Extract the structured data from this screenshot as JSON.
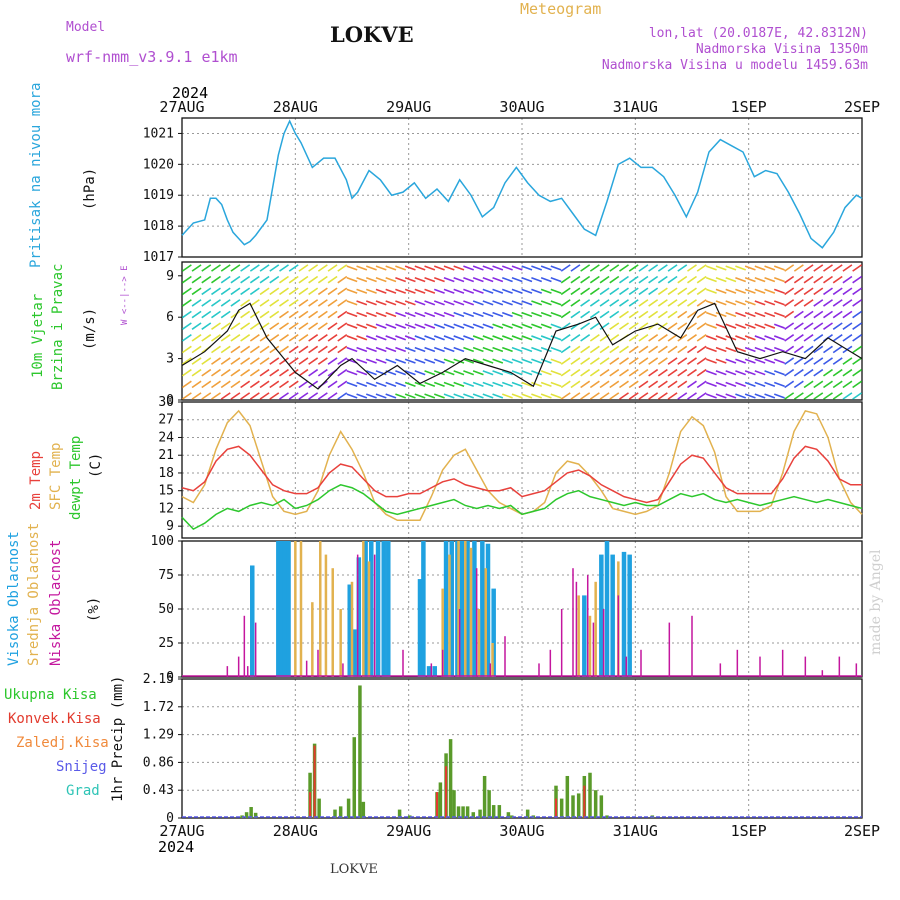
{
  "header": {
    "model_label": "Model",
    "model_name": "wrf-nmm_v3.9.1  e1km",
    "title": "LOKVE",
    "meteogram": "Meteogram",
    "lonlat": "lon,lat (20.0187E, 42.8312N)",
    "elevation": "Nadmorska Visina 1350m",
    "model_elevation": "Nadmorska Visina u modelu 1459.63m",
    "year": "2024",
    "footer_station": "LOKVE",
    "watermark": "made by Angel"
  },
  "colors": {
    "pressure": "#2aa6dc",
    "t2m": "#e8413c",
    "sfc": "#e2b24f",
    "dew": "#2dc72d",
    "high_cloud": "#1fa1e0",
    "mid_cloud": "#e2b24f",
    "low_cloud": "#c4169e",
    "total_precip": "#5a9a2a",
    "conv_precip": "#e23b2e"
  },
  "chart_data": [
    {
      "type": "line",
      "panel": "pressure",
      "ylabel_lines": [
        "Pritisak na nivou mora",
        "(hPa)"
      ],
      "ylim": [
        1017,
        1021.5
      ],
      "yticks": [
        1017,
        1018,
        1019,
        1020,
        1021
      ],
      "x_dates": [
        "27AUG",
        "28AUG",
        "29AUG",
        "30AUG",
        "31AUG",
        "1SEP",
        "2SEP"
      ],
      "grid": true,
      "series": [
        {
          "x": [
            0,
            0.1,
            0.2,
            0.25,
            0.3,
            0.35,
            0.4,
            0.45,
            0.5,
            0.55,
            0.6,
            0.65,
            0.75,
            0.85,
            0.9,
            0.95,
            1.0,
            1.05,
            1.15,
            1.25,
            1.35,
            1.45,
            1.5,
            1.55,
            1.65,
            1.75,
            1.85,
            1.95,
            2.05,
            2.15,
            2.25,
            2.35,
            2.45,
            2.55,
            2.65,
            2.75,
            2.85,
            2.95,
            3.05,
            3.15,
            3.25,
            3.35,
            3.45,
            3.55,
            3.65,
            3.75,
            3.85,
            3.95,
            4.05,
            4.15,
            4.25,
            4.35,
            4.45,
            4.55,
            4.65,
            4.75,
            4.85,
            4.95,
            5.05,
            5.15,
            5.25,
            5.35,
            5.45,
            5.55,
            5.65,
            5.75,
            5.85,
            5.95,
            6.0
          ],
          "y": [
            1017.7,
            1018.1,
            1018.2,
            1018.9,
            1018.9,
            1018.7,
            1018.2,
            1017.8,
            1017.6,
            1017.4,
            1017.5,
            1017.7,
            1018.2,
            1020.3,
            1021.0,
            1021.4,
            1021.0,
            1020.7,
            1019.9,
            1020.2,
            1020.2,
            1019.5,
            1018.9,
            1019.1,
            1019.8,
            1019.5,
            1019.0,
            1019.1,
            1019.4,
            1018.9,
            1019.2,
            1018.8,
            1019.5,
            1019.0,
            1018.3,
            1018.6,
            1019.4,
            1019.9,
            1019.4,
            1019.0,
            1018.8,
            1018.9,
            1018.4,
            1017.9,
            1017.7,
            1018.8,
            1020.0,
            1020.2,
            1019.9,
            1019.9,
            1019.6,
            1019.0,
            1018.3,
            1019.1,
            1020.4,
            1020.8,
            1020.6,
            1020.4,
            1019.6,
            1019.8,
            1019.7,
            1019.1,
            1018.4,
            1017.6,
            1017.3,
            1017.8,
            1018.6,
            1019.0,
            1018.9
          ]
        }
      ]
    },
    {
      "type": "line",
      "panel": "wind",
      "ylabel_lines": [
        "10m Vjetar",
        "Brzina i Pravac",
        "(m/s)"
      ],
      "compass": "W <--|--> E",
      "ylim": [
        0,
        10
      ],
      "yticks": [
        0,
        3,
        6,
        9
      ],
      "series": [
        {
          "name": "speed",
          "x": [
            0,
            0.2,
            0.4,
            0.5,
            0.6,
            0.75,
            0.9,
            1.0,
            1.2,
            1.4,
            1.5,
            1.7,
            1.9,
            2.1,
            2.3,
            2.5,
            2.7,
            2.9,
            3.1,
            3.3,
            3.5,
            3.65,
            3.8,
            4.0,
            4.2,
            4.4,
            4.55,
            4.7,
            4.9,
            5.1,
            5.3,
            5.5,
            5.7,
            5.9,
            6.0
          ],
          "y": [
            2.5,
            3.5,
            5.0,
            6.5,
            7.0,
            4.5,
            3.0,
            2.0,
            0.8,
            2.5,
            3.0,
            1.5,
            2.5,
            1.2,
            2.0,
            3.0,
            2.5,
            2.0,
            1.0,
            5.0,
            5.5,
            6.0,
            4.0,
            5.0,
            5.5,
            4.5,
            6.5,
            7.0,
            3.5,
            3.0,
            3.5,
            3.0,
            4.5,
            3.5,
            3.0
          ]
        }
      ]
    },
    {
      "type": "line",
      "panel": "temperature",
      "ylabel_lines": [
        "2m Temp",
        "SFC Temp",
        "dewpt Temp",
        "(C)"
      ],
      "ylim": [
        7,
        30
      ],
      "yticks": [
        9,
        12,
        15,
        18,
        21,
        24,
        27,
        30
      ],
      "series": [
        {
          "name": "2m Temp",
          "x": [
            0,
            0.1,
            0.2,
            0.3,
            0.4,
            0.5,
            0.6,
            0.7,
            0.8,
            0.9,
            1.0,
            1.1,
            1.2,
            1.3,
            1.4,
            1.5,
            1.6,
            1.7,
            1.8,
            1.9,
            2.0,
            2.1,
            2.2,
            2.3,
            2.4,
            2.5,
            2.6,
            2.7,
            2.8,
            2.9,
            3.0,
            3.1,
            3.2,
            3.3,
            3.4,
            3.5,
            3.6,
            3.7,
            3.8,
            3.9,
            4.0,
            4.1,
            4.2,
            4.3,
            4.4,
            4.5,
            4.6,
            4.7,
            4.8,
            4.9,
            5.0,
            5.1,
            5.2,
            5.3,
            5.4,
            5.5,
            5.6,
            5.7,
            5.8,
            5.9,
            6.0
          ],
          "y": [
            15.5,
            15.0,
            16.5,
            20.0,
            22.0,
            22.5,
            21.0,
            18.5,
            16.0,
            15.0,
            14.5,
            14.5,
            15.5,
            18.0,
            19.5,
            19.0,
            17.0,
            15.0,
            14.0,
            14.0,
            14.5,
            14.5,
            15.5,
            16.5,
            17.0,
            16.0,
            15.5,
            15.0,
            15.0,
            15.5,
            14.0,
            14.5,
            15.0,
            16.5,
            18.0,
            18.5,
            17.5,
            16.0,
            15.0,
            14.0,
            13.5,
            13.0,
            13.5,
            16.5,
            19.5,
            21.0,
            20.5,
            18.0,
            15.5,
            14.5,
            14.5,
            14.5,
            14.5,
            17.0,
            20.5,
            22.5,
            22.0,
            20.0,
            17.0,
            16.0,
            16.0
          ]
        },
        {
          "name": "SFC Temp",
          "x": [
            0,
            0.1,
            0.2,
            0.3,
            0.4,
            0.5,
            0.6,
            0.7,
            0.8,
            0.9,
            1.0,
            1.1,
            1.2,
            1.3,
            1.4,
            1.5,
            1.6,
            1.7,
            1.8,
            1.9,
            2.0,
            2.1,
            2.2,
            2.3,
            2.4,
            2.5,
            2.6,
            2.7,
            2.8,
            2.9,
            3.0,
            3.1,
            3.2,
            3.3,
            3.4,
            3.5,
            3.6,
            3.7,
            3.8,
            3.9,
            4.0,
            4.1,
            4.2,
            4.3,
            4.4,
            4.5,
            4.6,
            4.7,
            4.8,
            4.9,
            5.0,
            5.1,
            5.2,
            5.3,
            5.4,
            5.5,
            5.6,
            5.7,
            5.8,
            5.9,
            6.0
          ],
          "y": [
            14.0,
            13.0,
            16.0,
            22.0,
            26.5,
            28.5,
            26.0,
            20.0,
            14.0,
            11.5,
            11.0,
            11.5,
            15.0,
            21.0,
            25.0,
            22.0,
            18.0,
            13.0,
            11.0,
            10.0,
            10.0,
            10.0,
            14.0,
            18.5,
            21.0,
            22.0,
            18.5,
            15.0,
            13.0,
            12.0,
            11.0,
            11.5,
            13.0,
            18.0,
            20.0,
            19.5,
            17.5,
            15.0,
            12.0,
            11.5,
            11.0,
            11.5,
            12.5,
            18.0,
            25.0,
            27.5,
            26.0,
            21.5,
            14.0,
            11.5,
            11.5,
            11.5,
            12.5,
            18.0,
            25.0,
            28.5,
            28.0,
            24.0,
            17.0,
            13.0,
            11.0
          ]
        },
        {
          "name": "dewpt Temp",
          "x": [
            0,
            0.1,
            0.2,
            0.3,
            0.4,
            0.5,
            0.6,
            0.7,
            0.8,
            0.9,
            1.0,
            1.1,
            1.2,
            1.3,
            1.4,
            1.5,
            1.6,
            1.7,
            1.8,
            1.9,
            2.0,
            2.1,
            2.2,
            2.3,
            2.4,
            2.5,
            2.6,
            2.7,
            2.8,
            2.9,
            3.0,
            3.1,
            3.2,
            3.3,
            3.4,
            3.5,
            3.6,
            3.7,
            3.8,
            3.9,
            4.0,
            4.1,
            4.2,
            4.3,
            4.4,
            4.5,
            4.6,
            4.7,
            4.8,
            4.9,
            5.0,
            5.1,
            5.2,
            5.3,
            5.4,
            5.5,
            5.6,
            5.7,
            5.8,
            5.9,
            6.0
          ],
          "y": [
            10.5,
            8.5,
            9.5,
            11.0,
            12.0,
            11.5,
            12.5,
            13.0,
            12.5,
            13.5,
            12.0,
            12.5,
            13.5,
            15.0,
            16.0,
            15.5,
            14.5,
            13.0,
            11.5,
            11.0,
            11.5,
            12.0,
            12.5,
            13.0,
            13.5,
            12.5,
            12.0,
            12.5,
            12.0,
            12.5,
            11.0,
            11.5,
            12.0,
            13.5,
            14.5,
            15.0,
            14.0,
            13.5,
            13.0,
            12.5,
            13.0,
            12.5,
            12.5,
            13.5,
            14.5,
            14.0,
            14.5,
            13.5,
            13.0,
            13.5,
            13.0,
            12.5,
            13.0,
            13.5,
            14.0,
            13.5,
            13.0,
            13.5,
            13.0,
            12.5,
            12.0
          ]
        }
      ]
    },
    {
      "type": "bar",
      "panel": "clouds",
      "ylabel_lines": [
        "Visoka Oblacnost",
        "Srednja Oblacnost",
        "Niska Oblacnost",
        "(%)"
      ],
      "ylim": [
        0,
        100
      ],
      "yticks": [
        0,
        25,
        50,
        75,
        100
      ],
      "series": [
        {
          "name": "Visoka Oblacnost",
          "x": [
            0.62,
            0.85,
            0.88,
            0.91,
            0.94,
            1.48,
            1.52,
            1.56,
            1.62,
            1.67,
            1.73,
            1.78,
            1.82,
            2.1,
            2.13,
            2.18,
            2.23,
            2.33,
            2.38,
            2.43,
            2.47,
            2.52,
            2.58,
            2.65,
            2.7,
            2.75,
            3.55,
            3.7,
            3.75,
            3.8,
            3.9,
            3.95
          ],
          "y": [
            82,
            100,
            100,
            100,
            100,
            68,
            35,
            88,
            100,
            100,
            100,
            100,
            100,
            72,
            100,
            8,
            8,
            100,
            100,
            100,
            100,
            100,
            100,
            100,
            98,
            65,
            60,
            90,
            100,
            90,
            92,
            90
          ]
        },
        {
          "name": "Srednja Oblacnost",
          "x": [
            1.0,
            1.05,
            1.15,
            1.22,
            1.27,
            1.33,
            1.4,
            1.5,
            1.6,
            1.65,
            2.3,
            2.36,
            2.44,
            2.5,
            2.55,
            2.62,
            2.68,
            2.74,
            3.5,
            3.6,
            3.65,
            3.85
          ],
          "y": [
            100,
            100,
            55,
            100,
            90,
            80,
            50,
            70,
            100,
            85,
            65,
            90,
            100,
            100,
            95,
            50,
            80,
            25,
            60,
            45,
            70,
            85
          ]
        },
        {
          "name": "Niska Oblacnost",
          "x": [
            0.4,
            0.5,
            0.55,
            0.58,
            0.65,
            1.1,
            1.2,
            1.42,
            1.55,
            1.7,
            1.95,
            2.2,
            2.3,
            2.45,
            2.6,
            2.72,
            2.85,
            3.15,
            3.25,
            3.35,
            3.45,
            3.48,
            3.58,
            3.63,
            3.72,
            3.85,
            3.92,
            4.05,
            4.3,
            4.5,
            4.75,
            4.9,
            5.1,
            5.3,
            5.5,
            5.65,
            5.8,
            5.95
          ],
          "y": [
            8,
            15,
            45,
            8,
            40,
            12,
            20,
            10,
            90,
            90,
            20,
            10,
            20,
            50,
            80,
            10,
            30,
            10,
            20,
            50,
            80,
            70,
            75,
            40,
            50,
            60,
            15,
            20,
            40,
            45,
            10,
            20,
            15,
            20,
            15,
            5,
            15,
            10
          ]
        }
      ]
    },
    {
      "type": "bar",
      "panel": "precipitation",
      "ylabel_lines": [
        "Ukupna Kisa",
        "Konvek.Kisa",
        "Zaledj.Kisa",
        "Snijeg",
        "Grad",
        "1hr Precip (mm)"
      ],
      "ylim": [
        0,
        2.15
      ],
      "yticks": [
        0,
        0.43,
        0.86,
        1.29,
        1.72,
        2.15
      ],
      "series": [
        {
          "name": "Ukupna Kisa",
          "x": [
            0.53,
            0.57,
            0.61,
            0.65,
            1.13,
            1.17,
            1.21,
            1.35,
            1.4,
            1.47,
            1.52,
            1.57,
            1.6,
            1.92,
            2.01,
            2.25,
            2.28,
            2.33,
            2.37,
            2.4,
            2.44,
            2.48,
            2.52,
            2.57,
            2.63,
            2.67,
            2.71,
            2.75,
            2.8,
            2.88,
            2.91,
            3.05,
            3.1,
            3.3,
            3.35,
            3.4,
            3.45,
            3.5,
            3.55,
            3.6,
            3.65,
            3.7,
            3.75,
            4.15
          ],
          "y": [
            0.04,
            0.09,
            0.17,
            0.08,
            0.7,
            1.15,
            0.3,
            0.13,
            0.18,
            0.3,
            1.25,
            2.05,
            0.25,
            0.13,
            0.04,
            0.4,
            0.55,
            1.0,
            1.22,
            0.43,
            0.18,
            0.18,
            0.18,
            0.09,
            0.13,
            0.65,
            0.43,
            0.2,
            0.2,
            0.09,
            0.04,
            0.13,
            0.04,
            0.5,
            0.3,
            0.65,
            0.35,
            0.38,
            0.65,
            0.7,
            0.43,
            0.35,
            0.04,
            0.04
          ]
        },
        {
          "name": "Konvek.Kisa",
          "x": [
            1.13,
            1.17,
            2.25,
            2.33,
            3.3,
            3.55
          ],
          "y": [
            0.4,
            1.12,
            0.4,
            0.8,
            0.3,
            0.5
          ]
        }
      ]
    }
  ],
  "legend": {
    "pressure": "Pritisak na nivou mora",
    "hpa": "(hPa)",
    "wind_1": "10m Vjetar",
    "wind_2": "Brzina i Pravac",
    "ms": "(m/s)",
    "t2m": "2m Temp",
    "sfc": "SFC Temp",
    "dew": "dewpt Temp",
    "degc": "(C)",
    "high": "Visoka Oblacnost",
    "mid": "Srednja Oblacnost",
    "low": "Niska Oblacnost",
    "pct": "(%)",
    "rain_total": "Ukupna Kisa",
    "rain_conv": "Konvek.Kisa",
    "rain_frz": "Zaledj.Kisa",
    "snow": "Snijeg",
    "hail": "Grad",
    "precip_unit": "1hr Precip (mm)",
    "compass": "W <--|--> E"
  }
}
